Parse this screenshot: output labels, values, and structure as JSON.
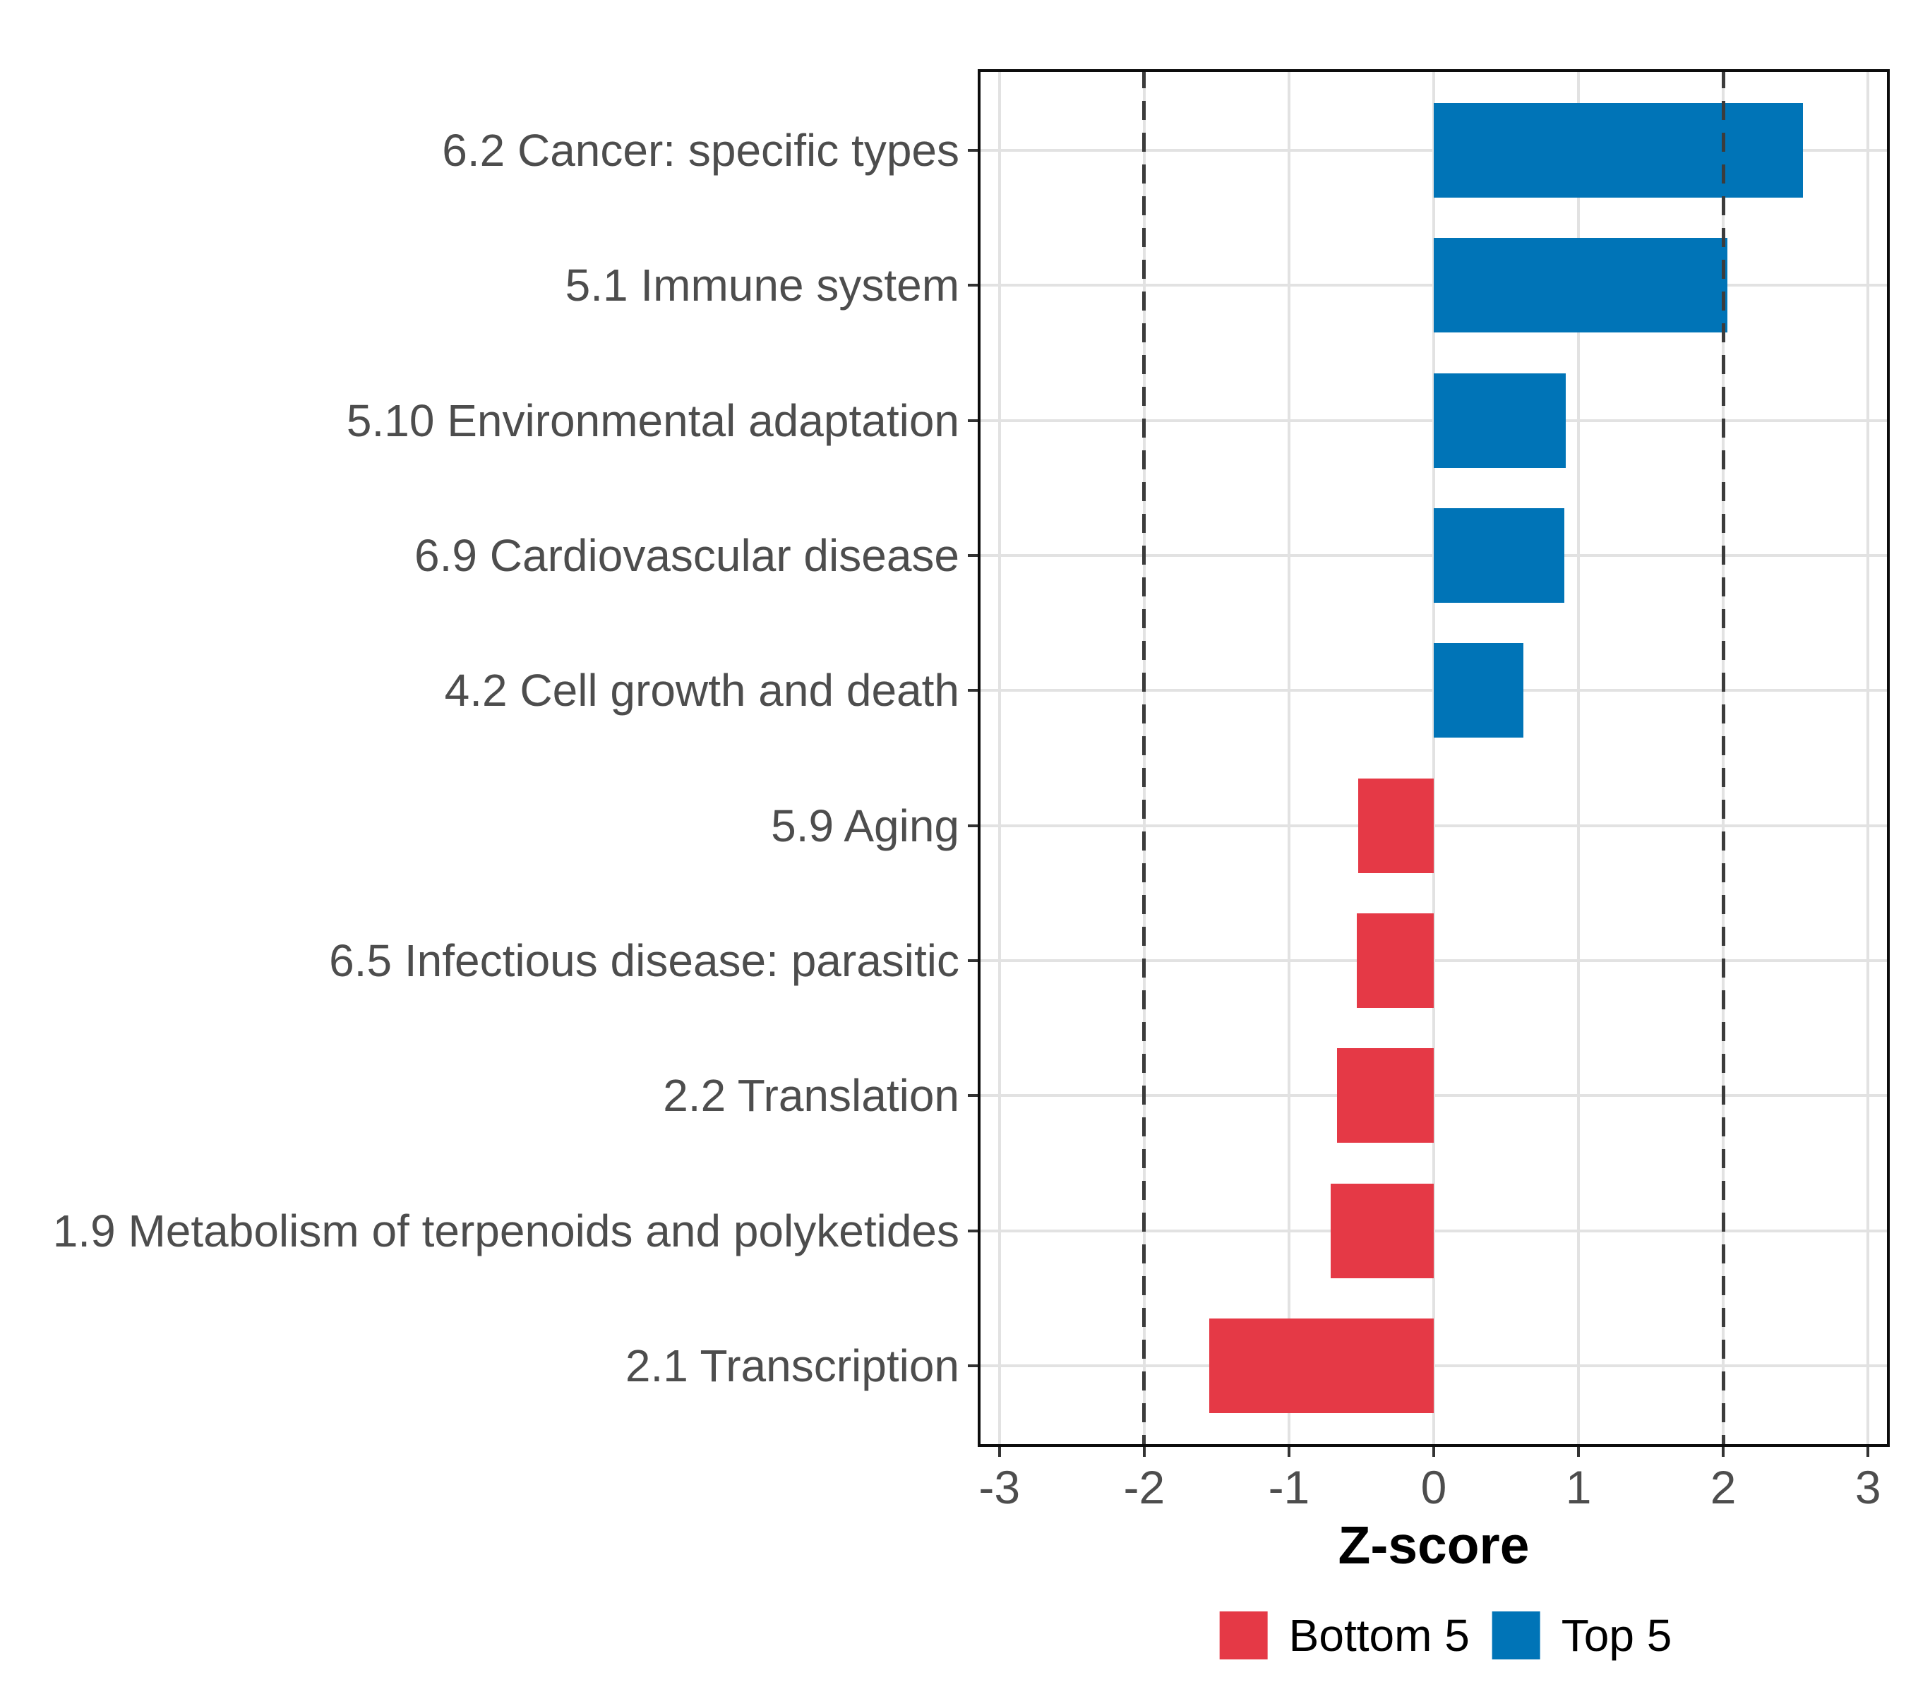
{
  "chart_data": {
    "type": "bar",
    "orientation": "horizontal",
    "title": "",
    "xlabel": "Z-score",
    "ylabel": "",
    "xlim": [
      -3.15,
      3.15
    ],
    "grid": true,
    "legend_position": "bottom",
    "x_ticks": [
      {
        "label": "-3",
        "value": -3
      },
      {
        "label": "-2",
        "value": -2
      },
      {
        "label": "-1",
        "value": -1
      },
      {
        "label": "0",
        "value": 0
      },
      {
        "label": "1",
        "value": 1
      },
      {
        "label": "2",
        "value": 2
      },
      {
        "label": "3",
        "value": 3
      }
    ],
    "reference_lines": {
      "values": [
        -2,
        2
      ],
      "style": "dashed",
      "color": "#3c3c3c"
    },
    "rows": [
      {
        "category": "6.2 Cancer: specific types",
        "value": 2.55,
        "group": "Top 5"
      },
      {
        "category": "5.1 Immune system",
        "value": 2.03,
        "group": "Top 5"
      },
      {
        "category": "5.10 Environmental adaptation",
        "value": 0.91,
        "group": "Top 5"
      },
      {
        "category": "6.9 Cardiovascular disease",
        "value": 0.9,
        "group": "Top 5"
      },
      {
        "category": "4.2 Cell growth and death",
        "value": 0.62,
        "group": "Top 5"
      },
      {
        "category": "5.9 Aging",
        "value": -0.52,
        "group": "Bottom 5"
      },
      {
        "category": "6.5 Infectious disease: parasitic",
        "value": -0.53,
        "group": "Bottom 5"
      },
      {
        "category": "2.2 Translation",
        "value": -0.67,
        "group": "Bottom 5"
      },
      {
        "category": "1.9 Metabolism of terpenoids and polyketides",
        "value": -0.71,
        "group": "Bottom 5"
      },
      {
        "category": "2.1 Transcription",
        "value": -1.55,
        "group": "Bottom 5"
      }
    ],
    "legend": [
      {
        "label": "Bottom 5",
        "color": "#E53946"
      },
      {
        "label": "Top 5",
        "color": "#0074B7"
      }
    ],
    "colors": {
      "bottom5": "#E53946",
      "top5": "#0074B7",
      "gridline": "#e2e2e2",
      "reference_line": "#3c3c3c",
      "axis_text": "#4d4d4d",
      "panel_border": "#0d0d0d"
    }
  }
}
